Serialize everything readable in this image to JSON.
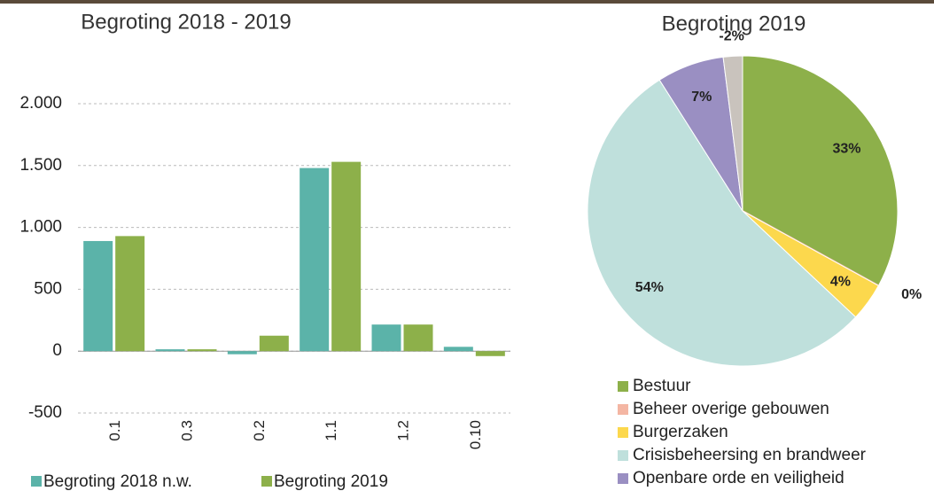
{
  "chart_data": [
    {
      "type": "bar",
      "title": "Begroting 2018 - 2019",
      "categories": [
        "0.1",
        "0.3",
        "0.2",
        "1.1",
        "1.2",
        "0.10"
      ],
      "series": [
        {
          "name": "Begroting 2018 n.w.",
          "color": "#5bb3a9",
          "values": [
            890,
            15,
            -25,
            1480,
            215,
            35
          ]
        },
        {
          "name": "Begroting 2019",
          "color": "#8db04a",
          "values": [
            930,
            15,
            125,
            1530,
            215,
            -40
          ]
        }
      ],
      "ylim": [
        -500,
        2000
      ],
      "yticks": [
        -500,
        0,
        500,
        {
          "value": 1000,
          "label": "1.000"
        },
        {
          "value": 1500,
          "label": "1.500"
        },
        {
          "value": 2000,
          "label": "2.000"
        }
      ],
      "grid": true
    },
    {
      "type": "pie",
      "title": "Begroting 2019",
      "categories": [
        "Bestuur",
        "Beheer overige gebouwen",
        "Burgerzaken",
        "Crisisbeheersing en brandweer",
        "Openbare orde en veiligheid",
        null
      ],
      "values": [
        33,
        0,
        4,
        54,
        7,
        -2
      ],
      "value_labels": [
        "33%",
        "0%",
        "4%",
        "54%",
        "7%",
        "-2%"
      ],
      "colors": [
        "#8db04a",
        "#f4b6a3",
        "#fcd84d",
        "#bfe0dc",
        "#9a8fc2",
        "#c9c3bd"
      ]
    }
  ]
}
